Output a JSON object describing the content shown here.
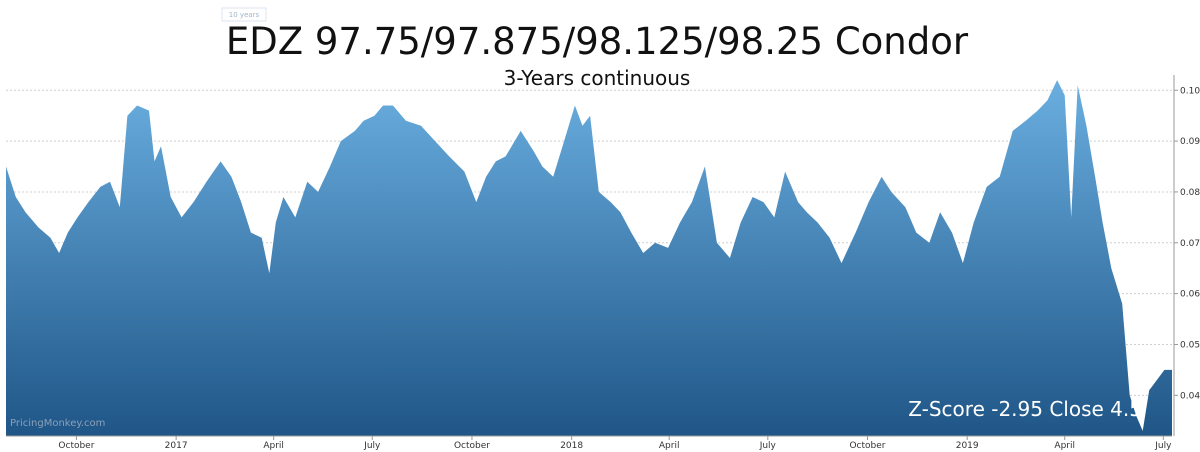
{
  "range_selector": {
    "label": "10 years"
  },
  "watermark": "PricingMonkey.com",
  "annotation": "Z-Score -2.95 Close 4.5",
  "colors": {
    "area_top": "#6aaee0",
    "area_bottom": "#1f5687",
    "grid": "#cfcfcf",
    "axis": "#999999"
  },
  "chart_data": {
    "type": "area",
    "title": "EDZ 97.75/97.875/98.125/98.25 Condor",
    "subtitle": "3-Years continuous",
    "ylim": [
      0.032,
      0.103
    ],
    "yticks": [
      0.04,
      0.05,
      0.06,
      0.07,
      0.08,
      0.09,
      0.1
    ],
    "ytick_labels": [
      "0.04",
      "0.05",
      "0.06",
      "0.07",
      "0.08",
      "0.09",
      "0.10"
    ],
    "xticks": [
      {
        "label": "October",
        "date": "2016-10-01"
      },
      {
        "label": "2017",
        "date": "2017-01-01"
      },
      {
        "label": "April",
        "date": "2017-04-01"
      },
      {
        "label": "July",
        "date": "2017-07-01"
      },
      {
        "label": "October",
        "date": "2017-10-01"
      },
      {
        "label": "2018",
        "date": "2018-01-01"
      },
      {
        "label": "April",
        "date": "2018-04-01"
      },
      {
        "label": "July",
        "date": "2018-07-01"
      },
      {
        "label": "October",
        "date": "2018-10-01"
      },
      {
        "label": "2019",
        "date": "2019-01-01"
      },
      {
        "label": "April",
        "date": "2019-04-01"
      },
      {
        "label": "July",
        "date": "2019-07-01"
      }
    ],
    "grid": true,
    "series": [
      {
        "dates": [
          "2016-07-28",
          "2016-08-06",
          "2016-08-15",
          "2016-08-27",
          "2016-09-07",
          "2016-09-15",
          "2016-09-23",
          "2016-10-02",
          "2016-10-12",
          "2016-10-23",
          "2016-11-01",
          "2016-11-10",
          "2016-11-17",
          "2016-11-26",
          "2016-12-07",
          "2016-12-12",
          "2016-12-18",
          "2016-12-27",
          "2017-01-06",
          "2017-01-17",
          "2017-01-29",
          "2017-02-11",
          "2017-02-21",
          "2017-03-02",
          "2017-03-11",
          "2017-03-21",
          "2017-03-28",
          "2017-04-03",
          "2017-04-10",
          "2017-04-21",
          "2017-05-02",
          "2017-05-12",
          "2017-05-23",
          "2017-06-02",
          "2017-06-15",
          "2017-06-23",
          "2017-07-03",
          "2017-07-11",
          "2017-07-20",
          "2017-08-01",
          "2017-08-15",
          "2017-08-28",
          "2017-09-10",
          "2017-09-24",
          "2017-10-05",
          "2017-10-14",
          "2017-10-23",
          "2017-11-01",
          "2017-11-15",
          "2017-11-27",
          "2017-12-05",
          "2017-12-15",
          "2017-12-25",
          "2018-01-04",
          "2018-01-11",
          "2018-01-18",
          "2018-01-26",
          "2018-02-06",
          "2018-02-15",
          "2018-02-25",
          "2018-03-08",
          "2018-03-19",
          "2018-03-31",
          "2018-04-11",
          "2018-04-22",
          "2018-05-04",
          "2018-05-15",
          "2018-05-27",
          "2018-06-06",
          "2018-06-17",
          "2018-06-27",
          "2018-07-07",
          "2018-07-17",
          "2018-07-29",
          "2018-08-06",
          "2018-08-16",
          "2018-08-27",
          "2018-09-07",
          "2018-09-20",
          "2018-10-02",
          "2018-10-14",
          "2018-10-23",
          "2018-11-05",
          "2018-11-15",
          "2018-11-27",
          "2018-12-07",
          "2018-12-18",
          "2018-12-28",
          "2019-01-07",
          "2019-01-19",
          "2019-01-31",
          "2019-02-12",
          "2019-02-24",
          "2019-03-07",
          "2019-03-16",
          "2019-03-25",
          "2019-04-01",
          "2019-04-07",
          "2019-04-13",
          "2019-04-21",
          "2019-04-29",
          "2019-05-06",
          "2019-05-14",
          "2019-05-24",
          "2019-05-31",
          "2019-06-06",
          "2019-06-12",
          "2019-06-18",
          "2019-06-25",
          "2019-07-02",
          "2019-07-09"
        ],
        "values": [
          0.085,
          0.079,
          0.076,
          0.073,
          0.071,
          0.068,
          0.072,
          0.075,
          0.078,
          0.081,
          0.082,
          0.077,
          0.095,
          0.097,
          0.096,
          0.086,
          0.089,
          0.079,
          0.075,
          0.078,
          0.082,
          0.086,
          0.083,
          0.078,
          0.072,
          0.071,
          0.064,
          0.074,
          0.079,
          0.075,
          0.082,
          0.08,
          0.085,
          0.09,
          0.092,
          0.094,
          0.095,
          0.097,
          0.097,
          0.094,
          0.093,
          0.09,
          0.087,
          0.084,
          0.078,
          0.083,
          0.086,
          0.087,
          0.092,
          0.088,
          0.085,
          0.083,
          0.09,
          0.097,
          0.093,
          0.095,
          0.08,
          0.078,
          0.076,
          0.072,
          0.068,
          0.07,
          0.069,
          0.074,
          0.078,
          0.085,
          0.07,
          0.067,
          0.074,
          0.079,
          0.078,
          0.075,
          0.084,
          0.078,
          0.076,
          0.074,
          0.071,
          0.066,
          0.072,
          0.078,
          0.083,
          0.08,
          0.077,
          0.072,
          0.07,
          0.076,
          0.072,
          0.066,
          0.074,
          0.081,
          0.083,
          0.092,
          0.094,
          0.096,
          0.098,
          0.102,
          0.099,
          0.075,
          0.101,
          0.093,
          0.083,
          0.074,
          0.065,
          0.058,
          0.04,
          0.036,
          0.033,
          0.041,
          0.043,
          0.045,
          0.045
        ]
      }
    ]
  }
}
